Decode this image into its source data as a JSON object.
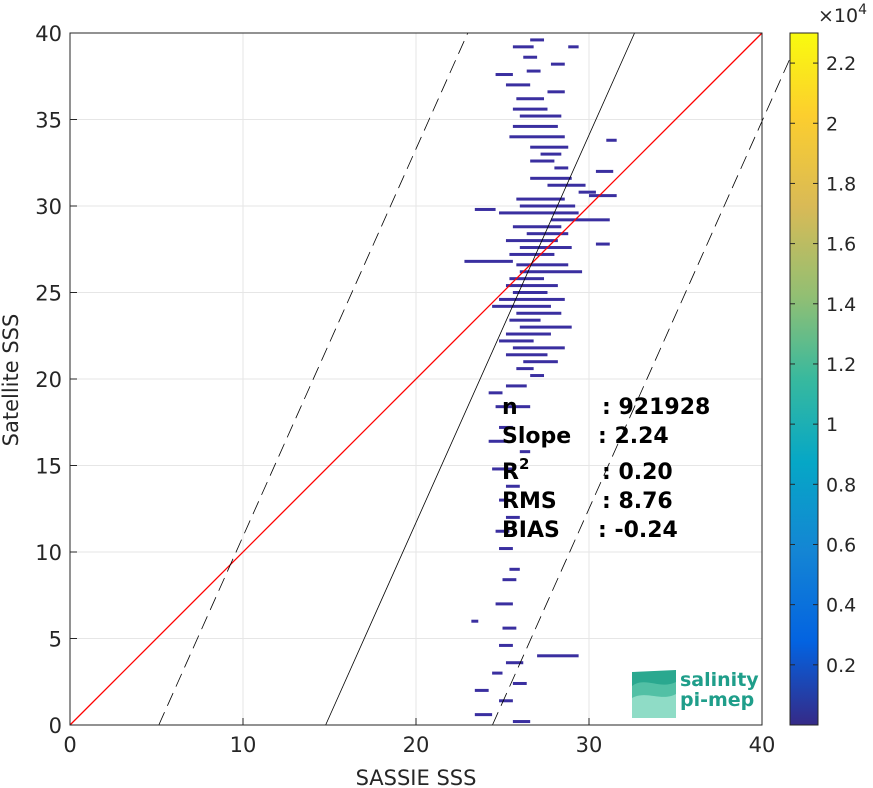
{
  "chart_data": {
    "type": "heatmap",
    "title": "",
    "xlabel": "SASSIE SSS",
    "ylabel": "Satellite SSS",
    "xlim": [
      0,
      40
    ],
    "ylim": [
      0,
      40
    ],
    "xticks": [
      "0",
      "10",
      "20",
      "30",
      "40"
    ],
    "yticks": [
      "0",
      "5",
      "10",
      "15",
      "20",
      "25",
      "30",
      "35",
      "40"
    ],
    "grid": true,
    "colormap": "parula",
    "colorbar": {
      "range": [
        0,
        23000
      ],
      "ticks": [
        0.2,
        0.4,
        0.6,
        0.8,
        1,
        1.2,
        1.4,
        1.6,
        1.8,
        2,
        2.2
      ],
      "tick_labels": [
        "0.2",
        "0.4",
        "0.6",
        "0.8",
        "1",
        "1.2",
        "1.4",
        "1.6",
        "1.8",
        "2",
        "2.2"
      ],
      "multiplier_base": "×10",
      "multiplier_exp": "4"
    },
    "lines": [
      {
        "name": "1:1",
        "color": "#ff0000",
        "x": [
          0,
          40
        ],
        "y": [
          0,
          40
        ]
      },
      {
        "name": "regression",
        "color": "#000000",
        "style": "solid",
        "slope": 2.24,
        "intercept": -33.1
      },
      {
        "name": "upper bound",
        "color": "#000000",
        "style": "dashed",
        "slope": 2.24,
        "intercept": -11.5
      },
      {
        "name": "lower bound",
        "color": "#000000",
        "style": "dashed",
        "slope": 2.24,
        "intercept": -54.7
      }
    ],
    "density_segments": [
      {
        "y": 39.6,
        "x0": 26.6,
        "x1": 27.4
      },
      {
        "y": 39.2,
        "x0": 25.6,
        "x1": 26.8
      },
      {
        "y": 39.2,
        "x0": 28.8,
        "x1": 29.4
      },
      {
        "y": 38.6,
        "x0": 26.2,
        "x1": 27.0
      },
      {
        "y": 38.2,
        "x0": 27.8,
        "x1": 28.6
      },
      {
        "y": 37.6,
        "x0": 24.6,
        "x1": 25.6
      },
      {
        "y": 37.8,
        "x0": 26.4,
        "x1": 27.2
      },
      {
        "y": 37.0,
        "x0": 25.2,
        "x1": 26.6
      },
      {
        "y": 36.6,
        "x0": 27.6,
        "x1": 28.6
      },
      {
        "y": 36.2,
        "x0": 25.8,
        "x1": 27.4
      },
      {
        "y": 35.6,
        "x0": 25.6,
        "x1": 27.6
      },
      {
        "y": 35.2,
        "x0": 26.0,
        "x1": 28.4
      },
      {
        "y": 34.6,
        "x0": 25.6,
        "x1": 28.2
      },
      {
        "y": 34.0,
        "x0": 25.4,
        "x1": 28.6
      },
      {
        "y": 33.4,
        "x0": 26.6,
        "x1": 28.8
      },
      {
        "y": 33.8,
        "x0": 31.0,
        "x1": 31.6
      },
      {
        "y": 33.0,
        "x0": 27.2,
        "x1": 28.4
      },
      {
        "y": 32.6,
        "x0": 26.6,
        "x1": 28.0
      },
      {
        "y": 32.2,
        "x0": 28.0,
        "x1": 28.8
      },
      {
        "y": 32.0,
        "x0": 30.4,
        "x1": 31.4
      },
      {
        "y": 31.6,
        "x0": 26.6,
        "x1": 29.0
      },
      {
        "y": 31.2,
        "x0": 27.6,
        "x1": 29.8
      },
      {
        "y": 30.8,
        "x0": 29.4,
        "x1": 30.4
      },
      {
        "y": 30.6,
        "x0": 30.0,
        "x1": 31.6
      },
      {
        "y": 30.4,
        "x0": 25.8,
        "x1": 28.6
      },
      {
        "y": 30.0,
        "x0": 26.0,
        "x1": 29.2
      },
      {
        "y": 29.8,
        "x0": 23.4,
        "x1": 24.6
      },
      {
        "y": 29.6,
        "x0": 24.8,
        "x1": 29.4
      },
      {
        "y": 29.2,
        "x0": 27.8,
        "x1": 31.2
      },
      {
        "y": 28.8,
        "x0": 25.6,
        "x1": 28.4
      },
      {
        "y": 28.4,
        "x0": 26.4,
        "x1": 28.8
      },
      {
        "y": 28.0,
        "x0": 25.2,
        "x1": 28.2
      },
      {
        "y": 27.8,
        "x0": 30.4,
        "x1": 31.2
      },
      {
        "y": 27.6,
        "x0": 26.0,
        "x1": 29.0
      },
      {
        "y": 27.2,
        "x0": 25.4,
        "x1": 28.0
      },
      {
        "y": 26.8,
        "x0": 22.8,
        "x1": 25.6
      },
      {
        "y": 26.6,
        "x0": 25.8,
        "x1": 28.8
      },
      {
        "y": 26.2,
        "x0": 26.0,
        "x1": 29.6
      },
      {
        "y": 25.8,
        "x0": 25.4,
        "x1": 27.4
      },
      {
        "y": 25.4,
        "x0": 25.2,
        "x1": 28.2
      },
      {
        "y": 25.0,
        "x0": 25.6,
        "x1": 27.6
      },
      {
        "y": 24.6,
        "x0": 24.8,
        "x1": 28.6
      },
      {
        "y": 24.2,
        "x0": 24.4,
        "x1": 27.8
      },
      {
        "y": 23.8,
        "x0": 25.8,
        "x1": 28.4
      },
      {
        "y": 23.4,
        "x0": 25.4,
        "x1": 27.2
      },
      {
        "y": 23.0,
        "x0": 26.0,
        "x1": 29.0
      },
      {
        "y": 22.6,
        "x0": 25.2,
        "x1": 27.8
      },
      {
        "y": 22.2,
        "x0": 24.8,
        "x1": 26.8
      },
      {
        "y": 21.8,
        "x0": 25.6,
        "x1": 28.6
      },
      {
        "y": 21.4,
        "x0": 25.2,
        "x1": 27.6
      },
      {
        "y": 21.0,
        "x0": 26.2,
        "x1": 28.2
      },
      {
        "y": 20.6,
        "x0": 25.8,
        "x1": 26.8
      },
      {
        "y": 20.2,
        "x0": 26.6,
        "x1": 27.4
      },
      {
        "y": 19.6,
        "x0": 25.2,
        "x1": 26.4
      },
      {
        "y": 19.2,
        "x0": 24.2,
        "x1": 25.0
      },
      {
        "y": 18.4,
        "x0": 24.6,
        "x1": 26.6
      },
      {
        "y": 17.2,
        "x0": 24.8,
        "x1": 25.6
      },
      {
        "y": 16.4,
        "x0": 24.2,
        "x1": 25.2
      },
      {
        "y": 15.8,
        "x0": 26.0,
        "x1": 26.6
      },
      {
        "y": 14.8,
        "x0": 24.4,
        "x1": 25.6
      },
      {
        "y": 13.8,
        "x0": 25.2,
        "x1": 26.0
      },
      {
        "y": 13.0,
        "x0": 24.8,
        "x1": 25.4
      },
      {
        "y": 12.0,
        "x0": 25.2,
        "x1": 26.0
      },
      {
        "y": 11.2,
        "x0": 24.6,
        "x1": 25.4
      },
      {
        "y": 10.2,
        "x0": 24.8,
        "x1": 25.6
      },
      {
        "y": 9.0,
        "x0": 25.4,
        "x1": 26.0
      },
      {
        "y": 8.4,
        "x0": 25.0,
        "x1": 25.8
      },
      {
        "y": 7.0,
        "x0": 24.6,
        "x1": 25.6
      },
      {
        "y": 6.0,
        "x0": 23.2,
        "x1": 23.6
      },
      {
        "y": 5.6,
        "x0": 25.0,
        "x1": 25.8
      },
      {
        "y": 4.6,
        "x0": 24.8,
        "x1": 25.6
      },
      {
        "y": 4.0,
        "x0": 27.0,
        "x1": 29.4
      },
      {
        "y": 3.6,
        "x0": 25.2,
        "x1": 26.2
      },
      {
        "y": 3.0,
        "x0": 24.4,
        "x1": 25.0
      },
      {
        "y": 2.4,
        "x0": 25.6,
        "x1": 26.4
      },
      {
        "y": 2.0,
        "x0": 23.4,
        "x1": 24.2
      },
      {
        "y": 1.4,
        "x0": 24.8,
        "x1": 25.6
      },
      {
        "y": 0.6,
        "x0": 23.4,
        "x1": 24.4
      },
      {
        "y": 0.2,
        "x0": 25.6,
        "x1": 26.6
      }
    ]
  },
  "stats": [
    {
      "key": "n",
      "value": ": 921928"
    },
    {
      "key": "Slope",
      "value": ": 2.24"
    },
    {
      "key": "R",
      "sup": "2",
      "value": ": 0.20"
    },
    {
      "key": "RMS",
      "value": ": 8.76"
    },
    {
      "key": "BIAS",
      "value": ": -0.24"
    }
  ],
  "logo": {
    "line1": "salinity",
    "line2": "pi-mep"
  },
  "colors": {
    "one_to_one": "#ff0000",
    "regression": "#000000",
    "grid": "#e6e6e6",
    "density_low": "#3a2fa0",
    "logo": "#1f9e8a"
  }
}
